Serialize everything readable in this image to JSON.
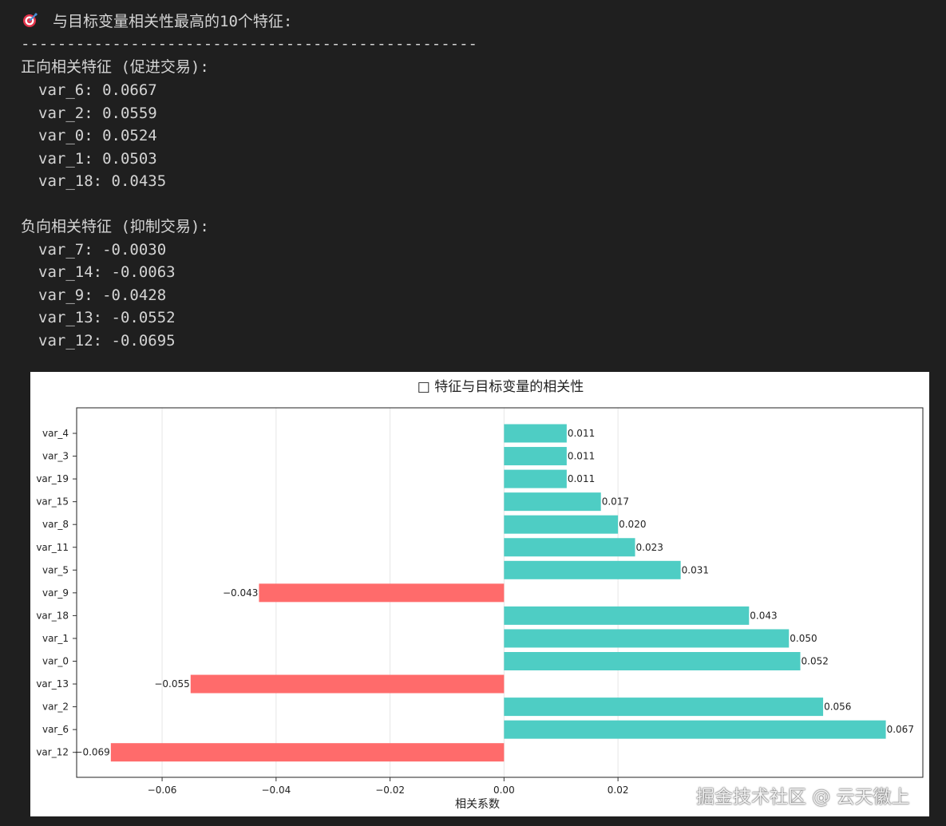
{
  "console": {
    "header_icon": "target-icon",
    "header": "与目标变量相关性最高的10个特征:",
    "divider": "--------------------------------------------------",
    "positive_title": "正向相关特征 (促进交易):",
    "positive": [
      "var_6: 0.0667",
      "var_2: 0.0559",
      "var_0: 0.0524",
      "var_1: 0.0503",
      "var_18: 0.0435"
    ],
    "negative_title": "负向相关特征 (抑制交易):",
    "negative": [
      "var_7: -0.0030",
      "var_14: -0.0063",
      "var_9: -0.0428",
      "var_13: -0.0552",
      "var_12: -0.0695"
    ]
  },
  "watermark": "掘金技术社区 @ 云天徽上",
  "chart_data": {
    "type": "bar",
    "orientation": "horizontal",
    "title": "□ 特征与目标变量的相关性",
    "xlabel": "相关系数",
    "ylabel": "",
    "xlim": [
      -0.075,
      0.0735
    ],
    "xticks": [
      -0.06,
      -0.04,
      -0.02,
      0.0,
      0.02
    ],
    "xtick_labels": [
      "−0.06",
      "−0.04",
      "−0.02",
      "0.00",
      "0.02"
    ],
    "grid": "vertical",
    "categories": [
      "var_4",
      "var_3",
      "var_19",
      "var_15",
      "var_8",
      "var_11",
      "var_5",
      "var_9",
      "var_18",
      "var_1",
      "var_0",
      "var_13",
      "var_2",
      "var_6",
      "var_12"
    ],
    "values": [
      0.011,
      0.011,
      0.011,
      0.017,
      0.02,
      0.023,
      0.031,
      -0.043,
      0.043,
      0.05,
      0.052,
      -0.055,
      0.056,
      0.067,
      -0.069
    ],
    "data_labels": [
      "0.011",
      "0.011",
      "0.011",
      "0.017",
      "0.020",
      "0.023",
      "0.031",
      "−0.043",
      "0.043",
      "0.050",
      "0.052",
      "−0.055",
      "0.056",
      "0.067",
      "−0.069"
    ],
    "colors": {
      "positive": "#4ecdc4",
      "negative": "#ff6b6b"
    }
  }
}
